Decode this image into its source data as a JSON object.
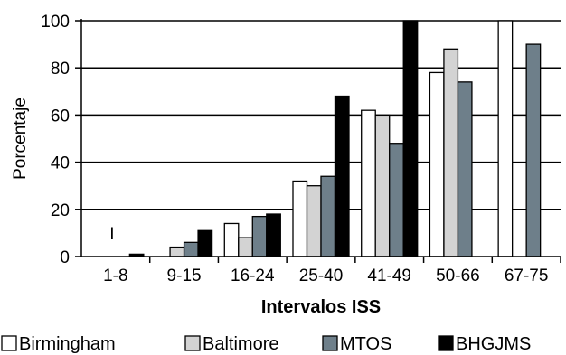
{
  "chart_data": {
    "type": "bar",
    "title": "",
    "xlabel": "Intervalos ISS",
    "ylabel": "Porcentaje",
    "ylim": [
      0,
      100
    ],
    "yticks": [
      0,
      20,
      40,
      60,
      80,
      100
    ],
    "categories": [
      "1-8",
      "9-15",
      "16-24",
      "25-40",
      "41-49",
      "50-66",
      "67-75"
    ],
    "series": [
      {
        "name": "Birmingham",
        "color": "#ffffff",
        "values": [
          null,
          null,
          14,
          32,
          62,
          78,
          100
        ]
      },
      {
        "name": "Baltimore",
        "color": "#d3d3d3",
        "values": [
          null,
          4,
          8,
          30,
          60,
          88,
          null
        ]
      },
      {
        "name": "MTOS",
        "color": "#6e7f8a",
        "values": [
          null,
          6,
          17,
          34,
          48,
          74,
          90
        ]
      },
      {
        "name": "BHGJMS",
        "color": "#000000",
        "values": [
          1,
          11,
          18,
          68,
          100,
          null,
          null
        ]
      }
    ],
    "annotations": [
      {
        "text": "I",
        "category": "1-8",
        "value": 10
      }
    ],
    "grid": true,
    "legend_position": "bottom"
  }
}
